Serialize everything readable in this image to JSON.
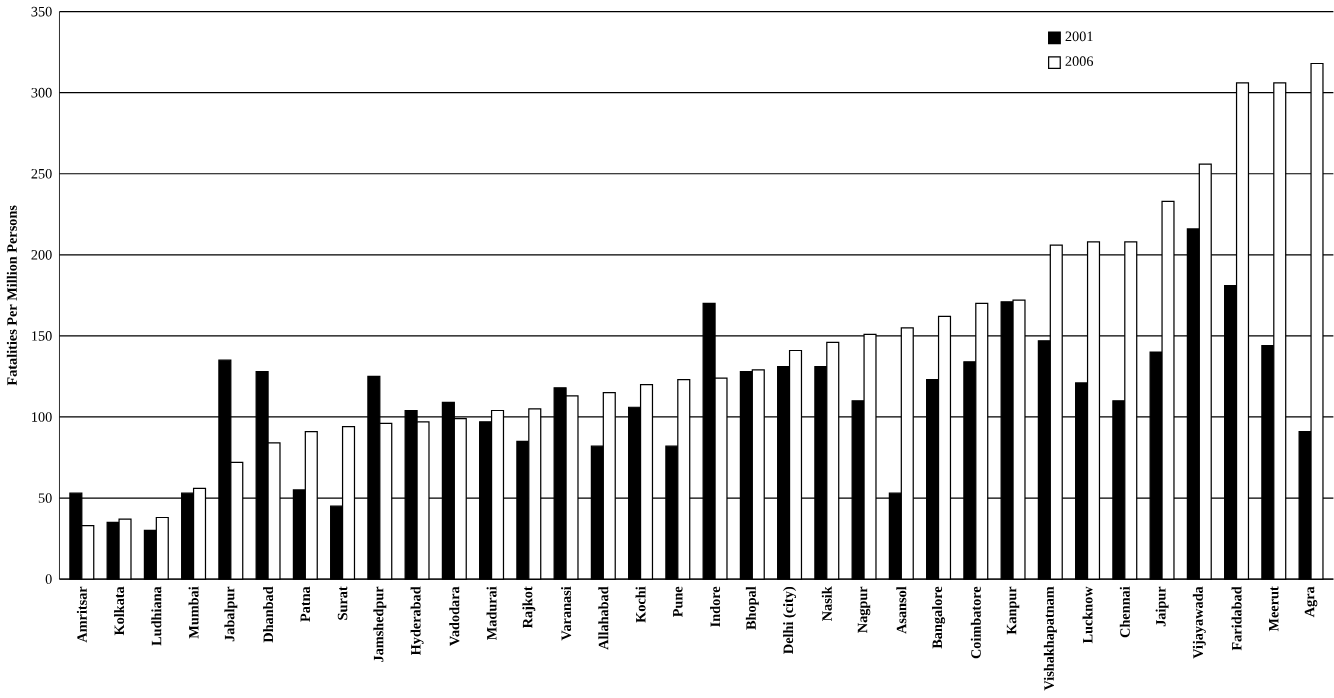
{
  "chart_data": {
    "type": "bar",
    "ylabel": "Fatalities Per Million Persons",
    "categories": [
      "Amritsar",
      "Kolkata",
      "Ludhiana",
      "Mumbai",
      "Jabalpur",
      "Dhanbad",
      "Patna",
      "Surat",
      "Jamshedpur",
      "Hyderabad",
      "Vadodara",
      "Madurai",
      "Rajkot",
      "Varanasi",
      "Allahabad",
      "Kochi",
      "Pune",
      "Indore",
      "Bhopal",
      "Delhi (city)",
      "Nasik",
      "Nagpur",
      "Asansol",
      "Bangalore",
      "Coimbatore",
      "Kanpur",
      "Vishakhapatnam",
      "Lucknow",
      "Chennai",
      "Jaipur",
      "Vijayawada",
      "Faridabad",
      "Meerut",
      "Agra"
    ],
    "series": [
      {
        "name": "2001",
        "color": "#000000",
        "values": [
          53,
          35,
          30,
          53,
          135,
          128,
          55,
          45,
          125,
          104,
          109,
          97,
          85,
          118,
          82,
          106,
          82,
          170,
          128,
          131,
          131,
          110,
          53,
          123,
          134,
          171,
          147,
          121,
          110,
          140,
          216,
          181,
          144,
          91
        ]
      },
      {
        "name": "2006",
        "color": "#ffffff",
        "values": [
          33,
          37,
          38,
          56,
          72,
          84,
          91,
          94,
          96,
          97,
          99,
          104,
          105,
          113,
          115,
          120,
          123,
          124,
          129,
          141,
          146,
          151,
          155,
          162,
          170,
          172,
          206,
          208,
          208,
          233,
          256,
          306,
          306,
          318
        ]
      }
    ],
    "ylim": [
      0,
      350
    ],
    "yticks": [
      0,
      50,
      100,
      150,
      200,
      250,
      300,
      350
    ],
    "grid": "y",
    "legend": "top right"
  }
}
